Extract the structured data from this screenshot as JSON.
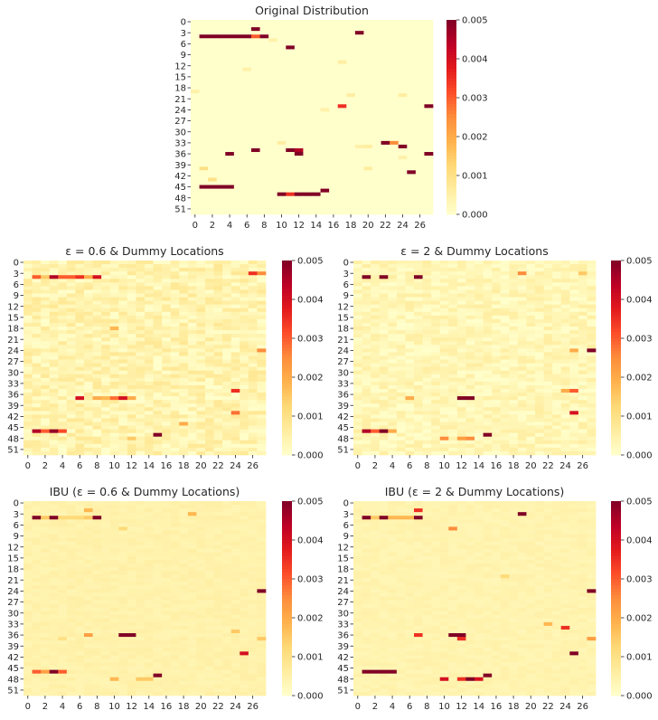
{
  "colormap": {
    "name": "YlOrRd",
    "stops": [
      "#ffffcc",
      "#ffeda0",
      "#fed976",
      "#feb24c",
      "#fd8d3c",
      "#fc4e2a",
      "#e31a1c",
      "#bd0026",
      "#800026"
    ]
  },
  "colorbar_ticks": [
    "0.000",
    "0.001",
    "0.002",
    "0.003",
    "0.004",
    "0.005"
  ],
  "x_tick_labels": [
    "0",
    "2",
    "4",
    "6",
    "8",
    "10",
    "12",
    "14",
    "16",
    "18",
    "20",
    "22",
    "24",
    "26"
  ],
  "y_tick_labels": [
    "0",
    "3",
    "6",
    "9",
    "12",
    "15",
    "18",
    "21",
    "24",
    "27",
    "30",
    "33",
    "36",
    "39",
    "42",
    "45",
    "48",
    "51"
  ],
  "chart_data": [
    {
      "type": "heatmap",
      "id": "original",
      "title": "Original Distribution",
      "rows": 53,
      "cols": 28,
      "vmin": 0,
      "vmax": 0.005,
      "background_value": 0.0,
      "noise_amplitude": 0.0,
      "cells": [
        [
          2,
          7,
          0.005
        ],
        [
          4,
          1,
          0.005
        ],
        [
          4,
          2,
          0.005
        ],
        [
          4,
          3,
          0.005
        ],
        [
          4,
          4,
          0.005
        ],
        [
          4,
          5,
          0.005
        ],
        [
          4,
          6,
          0.005
        ],
        [
          4,
          7,
          0.003
        ],
        [
          4,
          8,
          0.005
        ],
        [
          5,
          9,
          0.0005
        ],
        [
          3,
          19,
          0.005
        ],
        [
          7,
          11,
          0.005
        ],
        [
          11,
          17,
          0.0006
        ],
        [
          13,
          6,
          0.0005
        ],
        [
          19,
          0,
          0.0005
        ],
        [
          20,
          18,
          0.0006
        ],
        [
          20,
          24,
          0.0006
        ],
        [
          23,
          17,
          0.0035
        ],
        [
          23,
          27,
          0.005
        ],
        [
          24,
          15,
          0.0005
        ],
        [
          33,
          10,
          0.0006
        ],
        [
          33,
          22,
          0.005
        ],
        [
          33,
          23,
          0.0025
        ],
        [
          34,
          19,
          0.0005
        ],
        [
          34,
          20,
          0.0006
        ],
        [
          34,
          24,
          0.005
        ],
        [
          35,
          7,
          0.005
        ],
        [
          35,
          11,
          0.005
        ],
        [
          35,
          12,
          0.0045
        ],
        [
          36,
          12,
          0.005
        ],
        [
          36,
          4,
          0.005
        ],
        [
          36,
          27,
          0.005
        ],
        [
          37,
          24,
          0.0005
        ],
        [
          40,
          1,
          0.001
        ],
        [
          40,
          20,
          0.0006
        ],
        [
          41,
          25,
          0.005
        ],
        [
          43,
          2,
          0.001
        ],
        [
          45,
          1,
          0.005
        ],
        [
          45,
          2,
          0.005
        ],
        [
          45,
          3,
          0.005
        ],
        [
          45,
          4,
          0.005
        ],
        [
          46,
          15,
          0.005
        ],
        [
          47,
          10,
          0.005
        ],
        [
          47,
          11,
          0.0035
        ],
        [
          47,
          12,
          0.005
        ],
        [
          47,
          13,
          0.005
        ],
        [
          47,
          14,
          0.005
        ]
      ]
    },
    {
      "type": "heatmap",
      "id": "dummy_eps06",
      "title": "ε = 0.6 & Dummy Locations",
      "rows": 53,
      "cols": 28,
      "vmin": 0,
      "vmax": 0.005,
      "background_value": 0.0004,
      "noise_amplitude": 0.0004,
      "cells": [
        [
          4,
          1,
          0.003
        ],
        [
          4,
          2,
          0.0015
        ],
        [
          4,
          3,
          0.0045
        ],
        [
          4,
          4,
          0.003
        ],
        [
          4,
          5,
          0.003
        ],
        [
          4,
          6,
          0.0035
        ],
        [
          4,
          7,
          0.002
        ],
        [
          4,
          8,
          0.004
        ],
        [
          3,
          26,
          0.0035
        ],
        [
          3,
          27,
          0.0025
        ],
        [
          18,
          10,
          0.0018
        ],
        [
          24,
          27,
          0.0025
        ],
        [
          35,
          24,
          0.0035
        ],
        [
          37,
          6,
          0.004
        ],
        [
          37,
          8,
          0.002
        ],
        [
          37,
          9,
          0.0018
        ],
        [
          37,
          10,
          0.0028
        ],
        [
          37,
          11,
          0.004
        ],
        [
          37,
          12,
          0.002
        ],
        [
          41,
          24,
          0.0028
        ],
        [
          44,
          18,
          0.002
        ],
        [
          46,
          1,
          0.0045
        ],
        [
          46,
          2,
          0.003
        ],
        [
          46,
          3,
          0.0048
        ],
        [
          46,
          4,
          0.0032
        ],
        [
          47,
          15,
          0.005
        ],
        [
          48,
          12,
          0.0015
        ]
      ]
    },
    {
      "type": "heatmap",
      "id": "dummy_eps2",
      "title": "ε = 2 & Dummy Locations",
      "rows": 53,
      "cols": 28,
      "vmin": 0,
      "vmax": 0.005,
      "background_value": 0.0003,
      "noise_amplitude": 0.0003,
      "cells": [
        [
          4,
          1,
          0.005
        ],
        [
          4,
          3,
          0.005
        ],
        [
          4,
          7,
          0.005
        ],
        [
          3,
          19,
          0.0025
        ],
        [
          3,
          26,
          0.0015
        ],
        [
          24,
          25,
          0.002
        ],
        [
          24,
          27,
          0.005
        ],
        [
          35,
          24,
          0.002
        ],
        [
          35,
          25,
          0.003
        ],
        [
          37,
          12,
          0.005
        ],
        [
          37,
          13,
          0.005
        ],
        [
          37,
          6,
          0.002
        ],
        [
          41,
          25,
          0.004
        ],
        [
          46,
          1,
          0.0045
        ],
        [
          46,
          2,
          0.003
        ],
        [
          46,
          3,
          0.005
        ],
        [
          46,
          4,
          0.002
        ],
        [
          48,
          10,
          0.0025
        ],
        [
          48,
          12,
          0.0022
        ],
        [
          48,
          13,
          0.0025
        ],
        [
          47,
          15,
          0.005
        ]
      ]
    },
    {
      "type": "heatmap",
      "id": "ibu_eps06",
      "title": "IBU (ε = 0.6 & Dummy Locations)",
      "rows": 53,
      "cols": 28,
      "vmin": 0,
      "vmax": 0.005,
      "background_value": 0.00045,
      "noise_amplitude": 0.0001,
      "cells": [
        [
          2,
          7,
          0.0018
        ],
        [
          4,
          1,
          0.005
        ],
        [
          4,
          2,
          0.0015
        ],
        [
          4,
          3,
          0.005
        ],
        [
          4,
          4,
          0.0012
        ],
        [
          4,
          5,
          0.0012
        ],
        [
          4,
          6,
          0.0012
        ],
        [
          4,
          7,
          0.0015
        ],
        [
          4,
          8,
          0.005
        ],
        [
          3,
          19,
          0.0018
        ],
        [
          7,
          11,
          0.0012
        ],
        [
          24,
          27,
          0.005
        ],
        [
          35,
          24,
          0.0015
        ],
        [
          36,
          7,
          0.0022
        ],
        [
          36,
          11,
          0.005
        ],
        [
          36,
          12,
          0.005
        ],
        [
          37,
          4,
          0.001
        ],
        [
          37,
          27,
          0.0015
        ],
        [
          41,
          25,
          0.004
        ],
        [
          46,
          1,
          0.003
        ],
        [
          46,
          2,
          0.0022
        ],
        [
          46,
          3,
          0.005
        ],
        [
          46,
          4,
          0.003
        ],
        [
          47,
          15,
          0.005
        ],
        [
          48,
          10,
          0.0018
        ],
        [
          48,
          13,
          0.0015
        ],
        [
          48,
          14,
          0.0015
        ]
      ]
    },
    {
      "type": "heatmap",
      "id": "ibu_eps2",
      "title": "IBU (ε = 2 & Dummy Locations)",
      "rows": 53,
      "cols": 28,
      "vmin": 0,
      "vmax": 0.005,
      "background_value": 0.0004,
      "noise_amplitude": 0.0001,
      "cells": [
        [
          2,
          7,
          0.0035
        ],
        [
          4,
          1,
          0.005
        ],
        [
          4,
          2,
          0.0015
        ],
        [
          4,
          3,
          0.005
        ],
        [
          4,
          4,
          0.0018
        ],
        [
          4,
          5,
          0.0018
        ],
        [
          4,
          6,
          0.0018
        ],
        [
          4,
          7,
          0.005
        ],
        [
          3,
          19,
          0.005
        ],
        [
          7,
          11,
          0.0025
        ],
        [
          20,
          17,
          0.0012
        ],
        [
          24,
          27,
          0.005
        ],
        [
          33,
          22,
          0.0018
        ],
        [
          34,
          24,
          0.0035
        ],
        [
          36,
          7,
          0.0035
        ],
        [
          36,
          11,
          0.005
        ],
        [
          36,
          12,
          0.005
        ],
        [
          37,
          12,
          0.0035
        ],
        [
          37,
          27,
          0.0022
        ],
        [
          41,
          25,
          0.005
        ],
        [
          46,
          1,
          0.005
        ],
        [
          46,
          2,
          0.005
        ],
        [
          46,
          3,
          0.005
        ],
        [
          46,
          4,
          0.005
        ],
        [
          47,
          15,
          0.005
        ],
        [
          48,
          10,
          0.004
        ],
        [
          48,
          12,
          0.0035
        ],
        [
          48,
          13,
          0.005
        ],
        [
          48,
          14,
          0.004
        ]
      ]
    }
  ]
}
